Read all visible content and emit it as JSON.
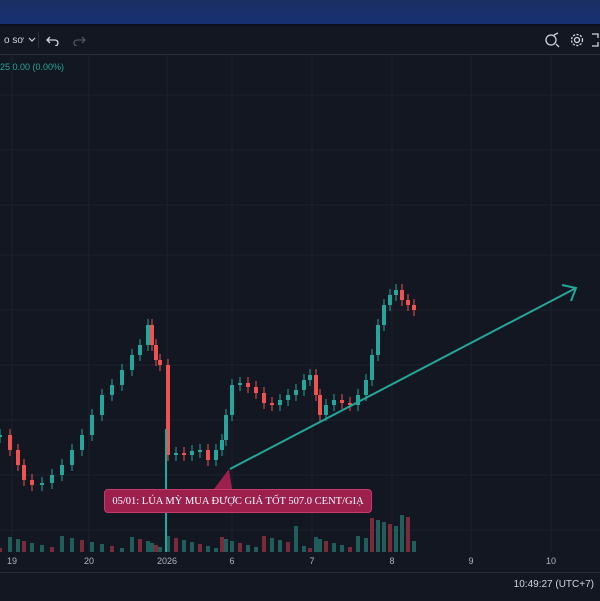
{
  "toolbar": {
    "dropdown_label": "o sơ",
    "undo_icon": "undo-icon",
    "redo_icon": "redo-icon",
    "snapshot_icon": "snapshot-icon",
    "settings_icon": "gear-icon",
    "fullscreen_icon": "fullscreen-icon"
  },
  "legend": {
    "text": "25  0.00 (0.00%)"
  },
  "annotation": {
    "text": "05/01: LÚA MỲ MUA ĐƯỢC GIÁ TỐT 507.0 CENT/GIẠ"
  },
  "x_axis": {
    "ticks": [
      "19",
      "20",
      "2026",
      "6",
      "7",
      "8",
      "9",
      "10"
    ]
  },
  "status": {
    "clock": "10:49:27 (UTC+7)"
  },
  "colors": {
    "up": "#26a69a",
    "down": "#ef5350",
    "background": "#131722",
    "trendline": "#26a69a",
    "callout": "#9c1f4c"
  }
}
